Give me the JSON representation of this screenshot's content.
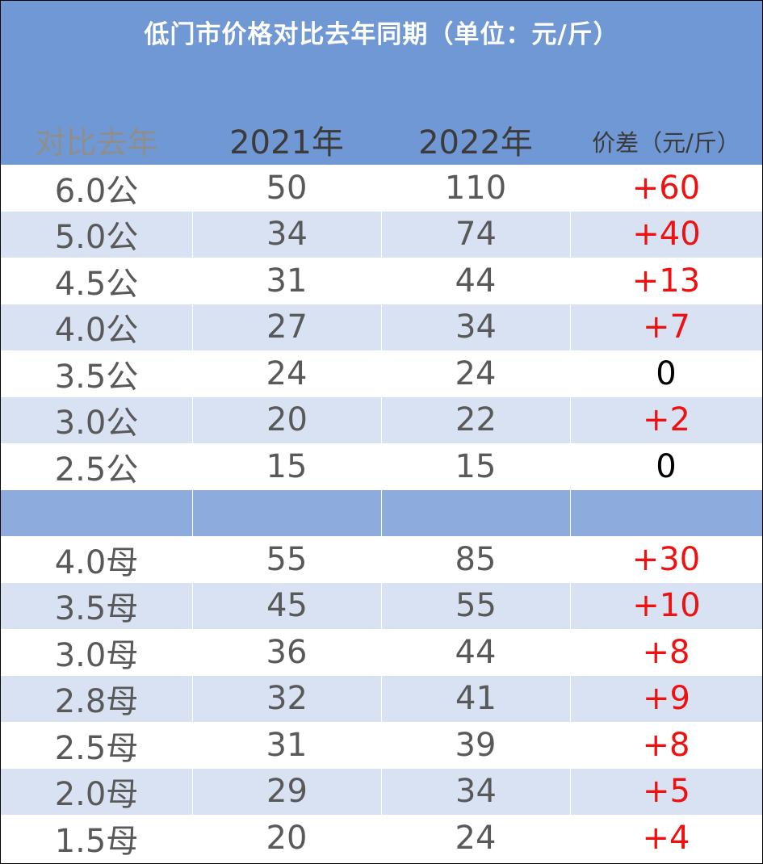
{
  "title": "低门市价格对比去年同期（单位：元/斤）",
  "headers": [
    "对比去年",
    "2021年",
    "2022年",
    "价差（元/斤）"
  ],
  "colors": {
    "header_bg": "#7098d4",
    "row_alt_bg": "#d9e2f2",
    "spacer_bg": "#8eabde",
    "increase_text": "#ee1111",
    "zero_text": "#000000"
  },
  "groups": [
    {
      "rows": [
        {
          "spec": "6.0公",
          "y2021": "50",
          "y2022": "110",
          "diff": "+60"
        },
        {
          "spec": "5.0公",
          "y2021": "34",
          "y2022": "74",
          "diff": "+40"
        },
        {
          "spec": "4.5公",
          "y2021": "31",
          "y2022": "44",
          "diff": "+13"
        },
        {
          "spec": "4.0公",
          "y2021": "27",
          "y2022": "34",
          "diff": "+7"
        },
        {
          "spec": "3.5公",
          "y2021": "24",
          "y2022": "24",
          "diff": "0"
        },
        {
          "spec": "3.0公",
          "y2021": "20",
          "y2022": "22",
          "diff": "+2"
        },
        {
          "spec": "2.5公",
          "y2021": "15",
          "y2022": "15",
          "diff": "0"
        }
      ]
    },
    {
      "rows": [
        {
          "spec": "4.0母",
          "y2021": "55",
          "y2022": "85",
          "diff": "+30"
        },
        {
          "spec": "3.5母",
          "y2021": "45",
          "y2022": "55",
          "diff": "+10"
        },
        {
          "spec": "3.0母",
          "y2021": "36",
          "y2022": "44",
          "diff": "+8"
        },
        {
          "spec": "2.8母",
          "y2021": "32",
          "y2022": "41",
          "diff": "+9"
        },
        {
          "spec": "2.5母",
          "y2021": "31",
          "y2022": "39",
          "diff": "+8"
        },
        {
          "spec": "2.0母",
          "y2021": "29",
          "y2022": "34",
          "diff": "+5"
        },
        {
          "spec": "1.5母",
          "y2021": "20",
          "y2022": "24",
          "diff": "+4"
        }
      ]
    }
  ]
}
